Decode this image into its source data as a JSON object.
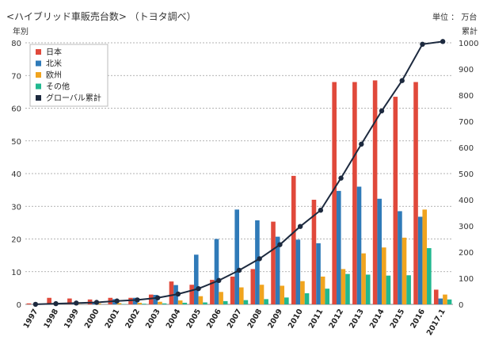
{
  "chart_data": {
    "type": "bar",
    "title": "<ハイブリッド車販売台数> （トヨタ調べ）",
    "y_left_label": "年別",
    "y_right_label_unit": "単位 ： 万台",
    "y_right_label": "累計",
    "ylim_left": [
      0,
      80
    ],
    "ylim_right": [
      0,
      1000
    ],
    "yticks_left": [
      0,
      10,
      20,
      30,
      40,
      50,
      60,
      70,
      80
    ],
    "yticks_right": [
      0,
      100,
      200,
      300,
      400,
      500,
      600,
      700,
      800,
      900,
      1000
    ],
    "grid": true,
    "legend_position": "top-left",
    "categories": [
      "1997",
      "1998",
      "1999",
      "2000",
      "2001",
      "2002",
      "2003",
      "2004",
      "2005",
      "2006",
      "2007",
      "2008",
      "2009",
      "2010",
      "2011",
      "2012",
      "2013",
      "2014",
      "2015",
      "2016",
      "2017.1"
    ],
    "series": [
      {
        "name": "日本",
        "color": "#e0493b",
        "values": [
          0.3,
          2,
          1.8,
          1.5,
          2,
          2,
          3,
          7,
          6,
          7.5,
          8.5,
          10.8,
          25.3,
          39.3,
          32,
          68,
          68,
          68.5,
          63.5,
          68,
          4.5
        ]
      },
      {
        "name": "北米",
        "color": "#2f7ab8",
        "values": [
          0,
          0.3,
          0.3,
          0.7,
          1.6,
          2,
          2.9,
          5.9,
          15.2,
          20,
          29,
          25.7,
          20.7,
          19.8,
          18.7,
          34.7,
          36,
          32.3,
          28.5,
          26.8,
          1.8
        ]
      },
      {
        "name": "欧州",
        "color": "#f0a41f",
        "values": [
          0,
          0,
          0.1,
          0.3,
          0.4,
          0.5,
          0.8,
          1.2,
          2.5,
          3.8,
          5.2,
          6,
          5.7,
          7.1,
          8.5,
          10.8,
          15.6,
          17.4,
          20.4,
          29,
          3
        ]
      },
      {
        "name": "その他",
        "color": "#21b88f",
        "values": [
          0,
          0,
          0,
          0,
          0.1,
          0.2,
          0.3,
          0.5,
          0.6,
          1,
          1.3,
          1.6,
          2.1,
          3.4,
          4.8,
          9.3,
          9.1,
          8.8,
          8.9,
          17.2,
          1.5
        ]
      }
    ],
    "line": {
      "name": "グローバル累計",
      "color": "#1d2a3f",
      "values": [
        0.3,
        2.8,
        5,
        7.6,
        13,
        16.9,
        24.9,
        39.5,
        60.1,
        91.4,
        130.4,
        174.5,
        228.3,
        297.9,
        359.9,
        482.7,
        612.6,
        739.7,
        855.4,
        994.5,
        1005
      ]
    }
  }
}
